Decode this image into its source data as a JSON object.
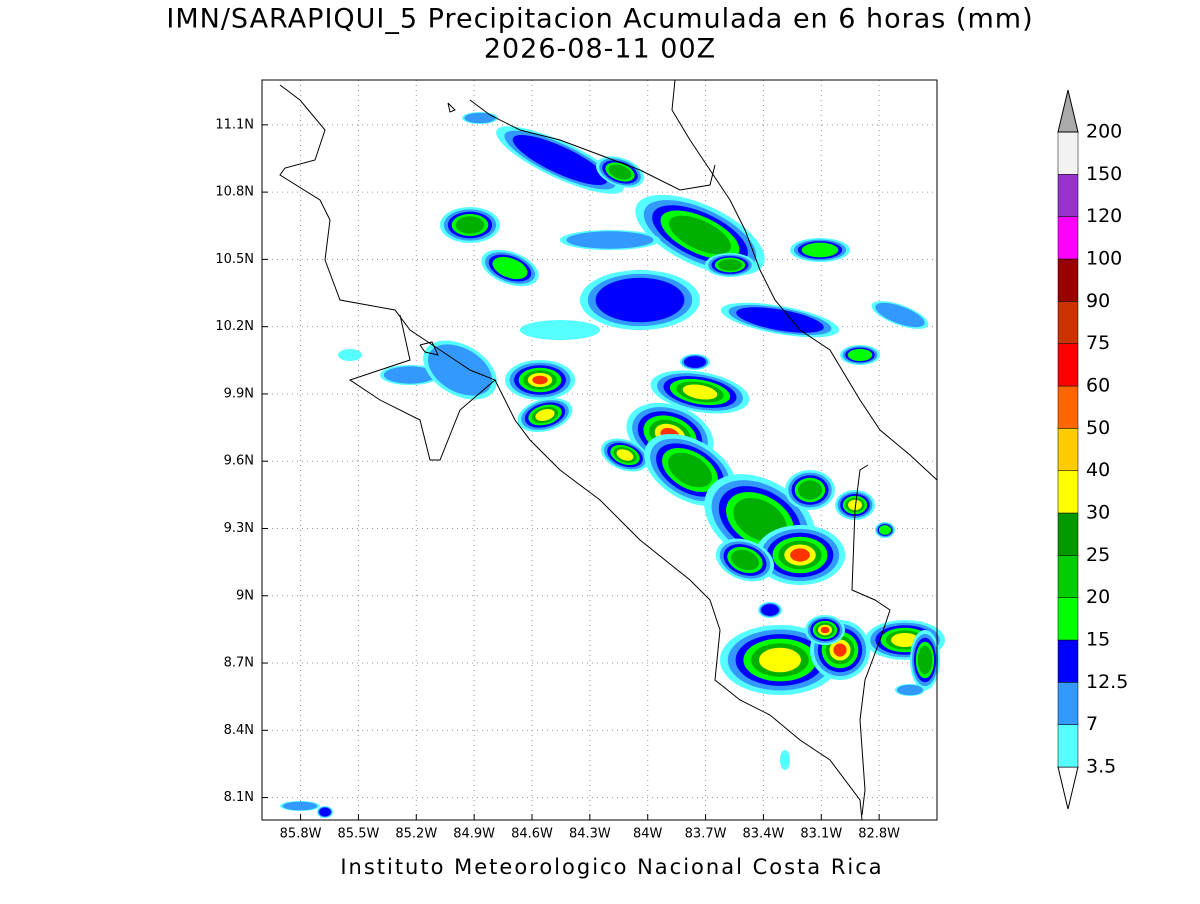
{
  "title": "IMN/SARAPIQUI_5 Precipitacion Acumulada en 6 horas (mm)",
  "subtitle": "2026-08-11 00Z",
  "map": {
    "xlim": [
      -86.0,
      -82.5
    ],
    "ylim": [
      8.0,
      11.3
    ],
    "xticks": [
      {
        "value": -85.8,
        "label": "85.8W"
      },
      {
        "value": -85.5,
        "label": "85.5W"
      },
      {
        "value": -85.2,
        "label": "85.2W"
      },
      {
        "value": -84.9,
        "label": "84.9W"
      },
      {
        "value": -84.6,
        "label": "84.6W"
      },
      {
        "value": -84.3,
        "label": "84.3W"
      },
      {
        "value": -84.0,
        "label": "84W"
      },
      {
        "value": -83.7,
        "label": "83.7W"
      },
      {
        "value": -83.4,
        "label": "83.4W"
      },
      {
        "value": -83.1,
        "label": "83.1W"
      },
      {
        "value": -82.8,
        "label": "82.8W"
      }
    ],
    "yticks": [
      {
        "value": 11.1,
        "label": "11.1N"
      },
      {
        "value": 10.8,
        "label": "10.8N"
      },
      {
        "value": 10.5,
        "label": "10.5N"
      },
      {
        "value": 10.2,
        "label": "10.2N"
      },
      {
        "value": 9.9,
        "label": "9.9N"
      },
      {
        "value": 9.6,
        "label": "9.6N"
      },
      {
        "value": 9.3,
        "label": "9.3N"
      },
      {
        "value": 9.0,
        "label": "9N"
      },
      {
        "value": 8.7,
        "label": "8.7N"
      },
      {
        "value": 8.4,
        "label": "8.4N"
      },
      {
        "value": 8.1,
        "label": "8.1N"
      }
    ],
    "grid": true
  },
  "colorbar": {
    "levels": [
      3.5,
      7,
      12.5,
      15,
      20,
      25,
      30,
      40,
      50,
      60,
      75,
      90,
      100,
      120,
      150,
      200
    ],
    "colors": [
      "#55ffff",
      "#3399ff",
      "#0000ff",
      "#00ff00",
      "#00cc00",
      "#009900",
      "#ffff00",
      "#ffcc00",
      "#ff6600",
      "#ff0000",
      "#cc3300",
      "#990000",
      "#ff00ff",
      "#9933cc",
      "#f2f2f2"
    ],
    "under_color": "#ffffff",
    "over_color": "#aaaaaa"
  },
  "footer": "Instituto Meteorologico Nacional Costa Rica"
}
